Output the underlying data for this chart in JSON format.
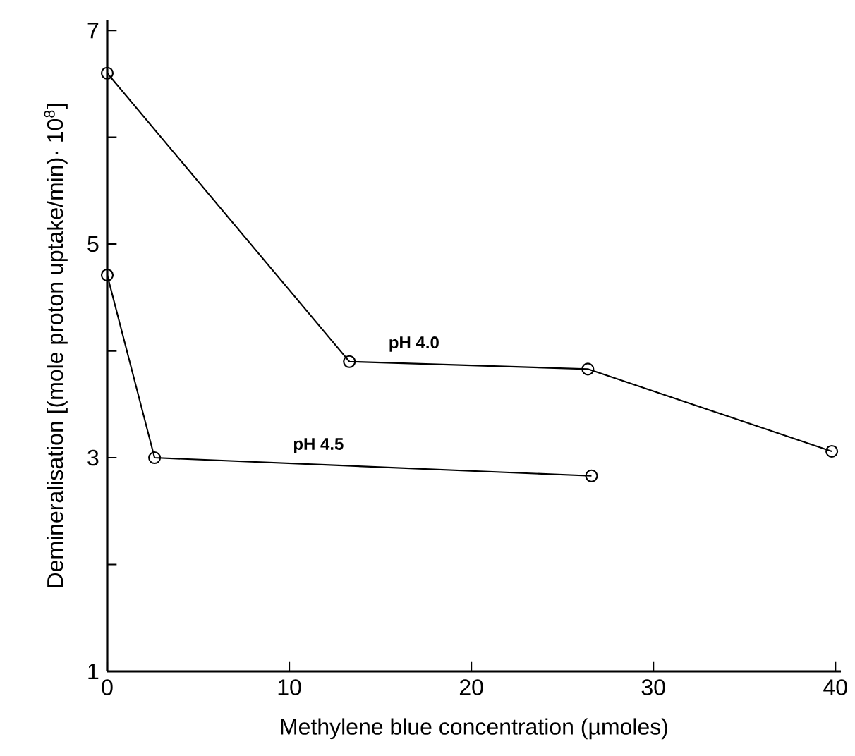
{
  "chart_data": {
    "type": "line",
    "xlabel": "Methylene blue concentration (µmoles)",
    "ylabel": "Demineralisation [(mole proton uptake/min)· 10$^{8}$]",
    "xlim": [
      0,
      40.3
    ],
    "ylim": [
      1,
      7.1
    ],
    "xticks": [
      0,
      10,
      20,
      30,
      40
    ],
    "yticks": [
      1,
      {
        "value": 2,
        "label": null
      },
      3,
      {
        "value": 4,
        "label": null
      },
      5,
      {
        "value": 6,
        "label": null
      },
      7
    ],
    "marker": "circle",
    "line_style": "solid",
    "grid": false,
    "legend": false,
    "series": [
      {
        "name": "pH 4.0",
        "color": "#000000",
        "x": [
          0,
          13.3,
          26.4,
          39.8
        ],
        "values": [
          6.6,
          3.9,
          3.83,
          3.06
        ]
      },
      {
        "name": "pH 4.5",
        "color": "#000000",
        "x": [
          0,
          2.6,
          26.6
        ],
        "values": [
          4.71,
          3.0,
          2.83
        ]
      }
    ]
  }
}
